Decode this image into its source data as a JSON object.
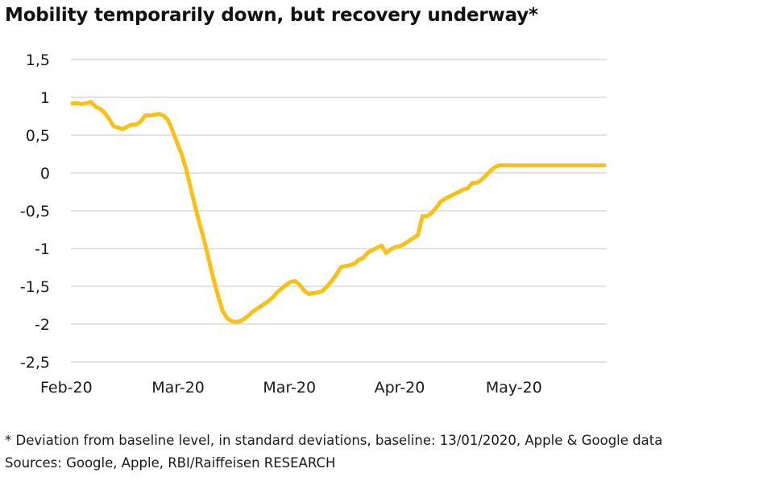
{
  "title": "Mobility temporarily down, but recovery underway*",
  "footnote": "* Deviation from baseline level, in standard deviations, baseline: 13/01/2020, Apple & Google data",
  "sources": "Sources: Google, Apple, RBI/Raiffeisen RESEARCH",
  "colors": {
    "series": "#F7C11A",
    "grid": "#d0d0d0",
    "text": "#1a1a1a"
  },
  "chart_data": {
    "type": "line",
    "title": "Mobility temporarily down, but recovery underway*",
    "xlabel": "",
    "ylabel": "",
    "ylim": [
      -2.5,
      1.5
    ],
    "yticks": [
      1.5,
      1,
      0.5,
      0,
      -0.5,
      -1,
      -1.5,
      -2,
      -2.5
    ],
    "ytick_labels": [
      "1,5",
      "1",
      "0,5",
      "0",
      "-0,5",
      "-1",
      "-1,5",
      "-2",
      "-2,5"
    ],
    "xlim": [
      0,
      117
    ],
    "xticks": [
      {
        "label": "Feb-20",
        "x": 0
      },
      {
        "label": "Mar-20",
        "x": 24.5
      },
      {
        "label": "Mar-20",
        "x": 49
      },
      {
        "label": "Apr-20",
        "x": 73.5
      },
      {
        "label": "May-20",
        "x": 98
      }
    ],
    "grid": true,
    "legend": "none",
    "series": [
      {
        "x": [
          0,
          1,
          2,
          3,
          4,
          5,
          6,
          7,
          8,
          9,
          10,
          11,
          12,
          13,
          14,
          15,
          16,
          17,
          18,
          19,
          20,
          21,
          22,
          23,
          24,
          25,
          26,
          27,
          28,
          29,
          30,
          31,
          32,
          33,
          34,
          35,
          36,
          37,
          38,
          39,
          40,
          41,
          42,
          43,
          44,
          45,
          46,
          47,
          48,
          49,
          50,
          51,
          52,
          53,
          54,
          55,
          56,
          57,
          58,
          59,
          60,
          61,
          62,
          63,
          64,
          65,
          66,
          67,
          68,
          69,
          70,
          71,
          72,
          73,
          74,
          75,
          76,
          77,
          78,
          79,
          80,
          81,
          82,
          83,
          84,
          85,
          86,
          87,
          88,
          89,
          90,
          91,
          92,
          93,
          94,
          95,
          96,
          97,
          98,
          99,
          100,
          101,
          102,
          103,
          104,
          105,
          106,
          107,
          108,
          109,
          110,
          111,
          112,
          113,
          114,
          115,
          116,
          117
        ],
        "values": [
          0.92,
          0.92,
          0.91,
          0.92,
          0.94,
          0.88,
          0.85,
          0.8,
          0.72,
          0.62,
          0.6,
          0.58,
          0.61,
          0.64,
          0.64,
          0.68,
          0.76,
          0.76,
          0.77,
          0.78,
          0.76,
          0.7,
          0.56,
          0.4,
          0.25,
          0.05,
          -0.2,
          -0.45,
          -0.68,
          -0.9,
          -1.15,
          -1.4,
          -1.62,
          -1.82,
          -1.92,
          -1.96,
          -1.97,
          -1.96,
          -1.92,
          -1.87,
          -1.82,
          -1.78,
          -1.74,
          -1.7,
          -1.65,
          -1.58,
          -1.53,
          -1.48,
          -1.44,
          -1.43,
          -1.48,
          -1.56,
          -1.6,
          -1.59,
          -1.58,
          -1.56,
          -1.5,
          -1.43,
          -1.35,
          -1.25,
          -1.23,
          -1.22,
          -1.2,
          -1.15,
          -1.12,
          -1.05,
          -1.02,
          -0.99,
          -0.96,
          -1.06,
          -1.01,
          -0.98,
          -0.97,
          -0.94,
          -0.9,
          -0.86,
          -0.82,
          -0.57,
          -0.57,
          -0.53,
          -0.46,
          -0.38,
          -0.34,
          -0.31,
          -0.28,
          -0.25,
          -0.22,
          -0.2,
          -0.13,
          -0.13,
          -0.09,
          -0.03,
          0.03,
          0.08,
          0.1,
          0.1,
          0.1,
          0.1,
          0.1,
          0.1,
          0.1,
          0.1,
          0.1,
          0.1,
          0.1,
          0.1,
          0.1,
          0.1,
          0.1,
          0.1,
          0.1,
          0.1,
          0.1,
          0.1,
          0.1,
          0.1,
          0.1,
          0.1
        ]
      }
    ]
  }
}
